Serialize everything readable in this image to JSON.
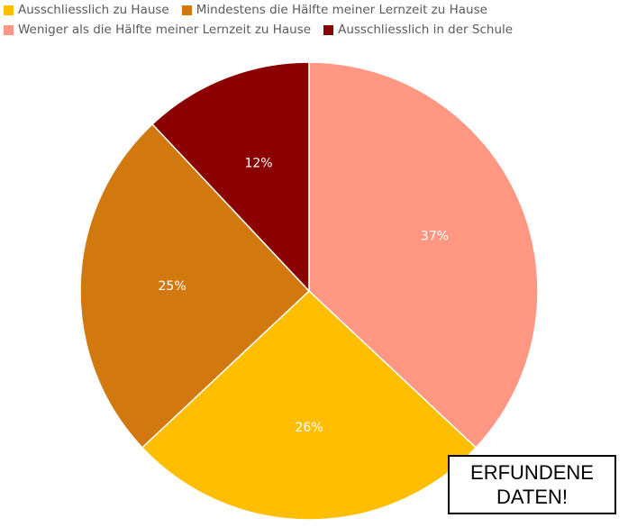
{
  "chart_data": {
    "type": "pie",
    "legend_position": "top",
    "slices": [
      {
        "label": "Ausschliesslich zu Hause",
        "value": 26,
        "value_label": "26%",
        "color": "#ffbf00"
      },
      {
        "label": "Mindestens die Hälfte meiner Lernzeit zu Hause",
        "value": 25,
        "value_label": "25%",
        "color": "#d1790e"
      },
      {
        "label": "Weniger als die Hälfte meiner Lernzeit zu Hause",
        "value": 37,
        "value_label": "37%",
        "color": "#ff9783"
      },
      {
        "label": "Ausschliesslich in der Schule",
        "value": 12,
        "value_label": "12%",
        "color": "#8b0000"
      }
    ]
  },
  "stamp": {
    "line1": "ERFUNDENE",
    "line2": "DATEN!"
  }
}
